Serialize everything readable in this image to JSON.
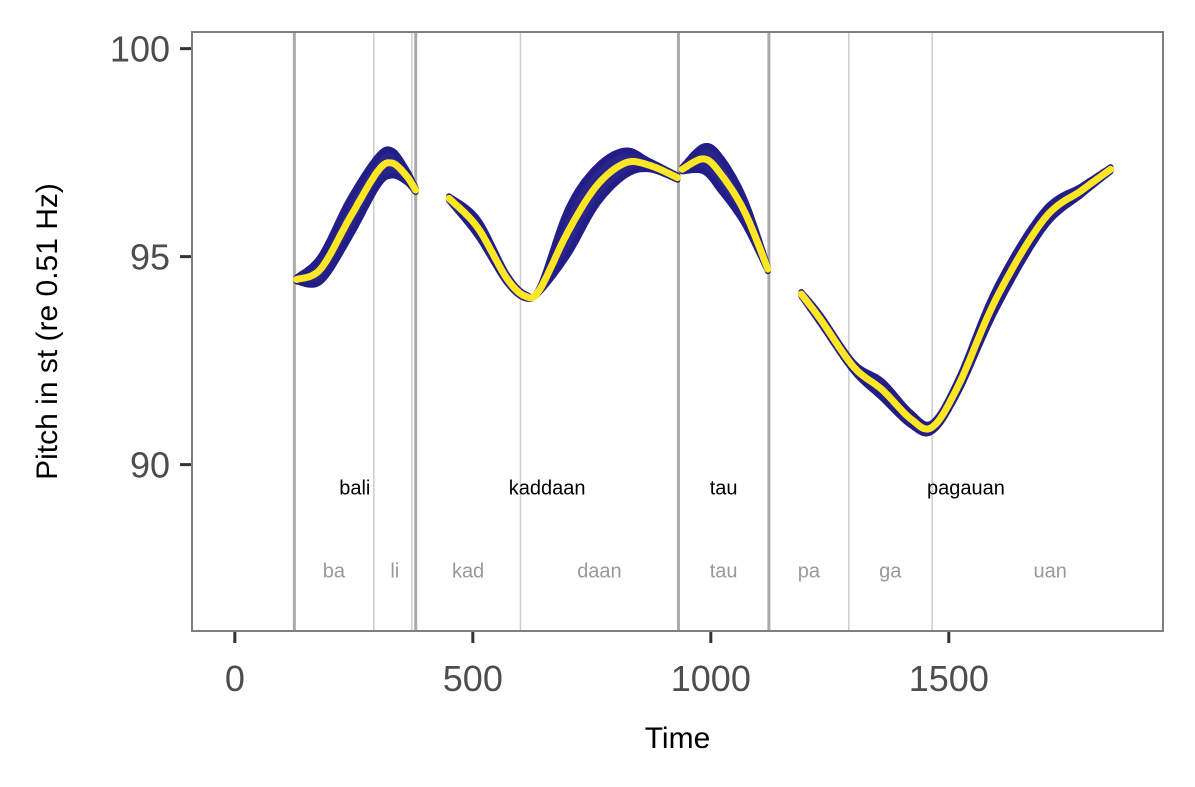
{
  "chart_data": {
    "type": "line",
    "title": "",
    "xlabel": "Time",
    "ylabel": "Pitch in st (re 0.51 Hz)",
    "xlim": [
      -90,
      1950
    ],
    "ylim": [
      86.0,
      100.4
    ],
    "xticks": [
      0,
      500,
      1000,
      1500
    ],
    "xtick_labels": [
      "0",
      "500",
      "1000",
      "1500"
    ],
    "yticks": [
      90,
      95,
      100
    ],
    "ytick_labels": [
      "90",
      "95",
      "100"
    ],
    "grid": true,
    "colors": {
      "band": "#231e87",
      "line": "#fde725",
      "boundary_word": "#aaaaaa",
      "boundary_syllable": "#cccccc"
    },
    "word_boundaries": [
      125,
      380,
      932,
      1122
    ],
    "syllable_boundaries": [
      292,
      372,
      600,
      1290,
      1465
    ],
    "words": [
      {
        "label": "bali",
        "x": 252
      },
      {
        "label": "kaddaan",
        "x": 656
      },
      {
        "label": "tau",
        "x": 1027
      },
      {
        "label": "pagauan",
        "x": 1536
      }
    ],
    "syllables": [
      {
        "label": "ba",
        "x": 208
      },
      {
        "label": "li",
        "x": 336
      },
      {
        "label": "kad",
        "x": 490
      },
      {
        "label": "daan",
        "x": 766
      },
      {
        "label": "tau",
        "x": 1027
      },
      {
        "label": "pa",
        "x": 1206
      },
      {
        "label": "ga",
        "x": 1377
      },
      {
        "label": "uan",
        "x": 1713
      }
    ],
    "word_label_y": 89.45,
    "syllable_label_y": 87.45,
    "series": [
      {
        "name": "bali",
        "x": [
          130,
          180,
          240,
          300,
          330,
          360,
          380
        ],
        "y": [
          94.45,
          94.7,
          95.9,
          97.05,
          97.25,
          96.95,
          96.6
        ],
        "band_width": [
          0.05,
          0.3,
          0.45,
          0.35,
          0.3,
          0.15,
          0.05
        ]
      },
      {
        "name": "kaddaan",
        "x": [
          450,
          510,
          570,
          610,
          640,
          700,
          760,
          820,
          870,
          930
        ],
        "y": [
          96.4,
          95.7,
          94.5,
          94.05,
          94.2,
          95.6,
          96.7,
          97.25,
          97.2,
          96.9
        ],
        "band_width": [
          0.05,
          0.2,
          0.1,
          0.05,
          0.05,
          0.55,
          0.45,
          0.3,
          0.1,
          0.05
        ]
      },
      {
        "name": "tau",
        "x": [
          940,
          985,
          1020,
          1070,
          1120
        ],
        "y": [
          97.1,
          97.35,
          97.0,
          96.1,
          94.7
        ],
        "band_width": [
          0.05,
          0.3,
          0.4,
          0.3,
          0.05
        ]
      },
      {
        "name": "pagauan",
        "x": [
          1190,
          1230,
          1300,
          1360,
          1420,
          1465,
          1520,
          1600,
          1700,
          1780,
          1840
        ],
        "y": [
          94.1,
          93.5,
          92.35,
          91.8,
          91.1,
          90.9,
          91.9,
          94.0,
          95.9,
          96.6,
          97.1
        ],
        "band_width": [
          0.05,
          0.1,
          0.1,
          0.2,
          0.15,
          0.1,
          0.15,
          0.25,
          0.2,
          0.1,
          0.05
        ]
      }
    ]
  }
}
